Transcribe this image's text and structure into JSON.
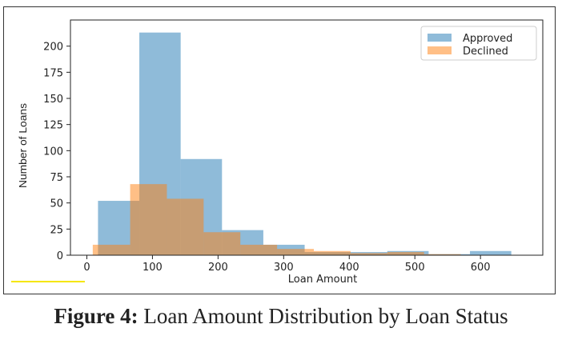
{
  "caption": {
    "label": "Figure 4:",
    "text": "Loan Amount Distribution by Loan Status"
  },
  "chart_data": {
    "type": "bar",
    "subtype": "histogram-overlay",
    "title": "",
    "xlabel": "Loan Amount",
    "ylabel": "Number of Loans",
    "xlim": [
      -25,
      695
    ],
    "ylim": [
      0,
      225
    ],
    "xticks": [
      0,
      100,
      200,
      300,
      400,
      500,
      600
    ],
    "yticks": [
      0,
      25,
      50,
      75,
      100,
      125,
      150,
      175,
      200
    ],
    "grid": false,
    "legend_position": "top-right",
    "series": [
      {
        "name": "Approved",
        "color": "#1f77b4",
        "opacity": 0.5,
        "bins": [
          {
            "x0": 17,
            "x1": 80,
            "value": 52
          },
          {
            "x0": 80,
            "x1": 143,
            "value": 213
          },
          {
            "x0": 143,
            "x1": 206,
            "value": 92
          },
          {
            "x0": 206,
            "x1": 269,
            "value": 24
          },
          {
            "x0": 269,
            "x1": 332,
            "value": 10
          },
          {
            "x0": 332,
            "x1": 395,
            "value": 3
          },
          {
            "x0": 395,
            "x1": 458,
            "value": 3
          },
          {
            "x0": 458,
            "x1": 521,
            "value": 4
          },
          {
            "x0": 521,
            "x1": 584,
            "value": 1
          },
          {
            "x0": 584,
            "x1": 647,
            "value": 4
          }
        ]
      },
      {
        "name": "Declined",
        "color": "#ff7f0e",
        "opacity": 0.5,
        "bins": [
          {
            "x0": 9,
            "x1": 66,
            "value": 10
          },
          {
            "x0": 66,
            "x1": 122,
            "value": 68
          },
          {
            "x0": 122,
            "x1": 178,
            "value": 54
          },
          {
            "x0": 178,
            "x1": 234,
            "value": 22
          },
          {
            "x0": 234,
            "x1": 290,
            "value": 10
          },
          {
            "x0": 290,
            "x1": 346,
            "value": 6
          },
          {
            "x0": 346,
            "x1": 402,
            "value": 4
          },
          {
            "x0": 402,
            "x1": 458,
            "value": 2
          },
          {
            "x0": 458,
            "x1": 514,
            "value": 3
          },
          {
            "x0": 514,
            "x1": 570,
            "value": 1
          }
        ]
      }
    ]
  }
}
